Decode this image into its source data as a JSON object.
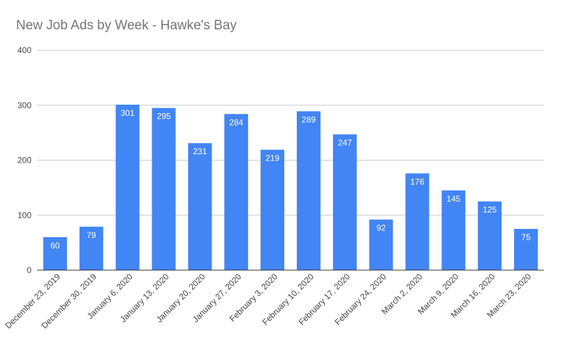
{
  "chart_data": {
    "type": "bar",
    "title": "New Job Ads by Week - Hawke's Bay",
    "xlabel": "",
    "ylabel": "",
    "ylim": [
      0,
      400
    ],
    "yticks": [
      0,
      100,
      200,
      300,
      400
    ],
    "grid": true,
    "legend": "none",
    "categories": [
      "December 23, 2019",
      "December 30, 2019",
      "January 6, 2020",
      "January 13, 2020",
      "January 20, 2020",
      "January 27, 2020",
      "February 3, 2020",
      "February 10, 2020",
      "February 17, 2020",
      "February 24, 2020",
      "March 2, 2020",
      "March 9, 2020",
      "March 16, 2020",
      "March 23, 2020"
    ],
    "values": [
      60,
      79,
      301,
      295,
      231,
      284,
      219,
      289,
      247,
      92,
      176,
      145,
      125,
      75
    ],
    "bar_color": "#4285f4"
  }
}
